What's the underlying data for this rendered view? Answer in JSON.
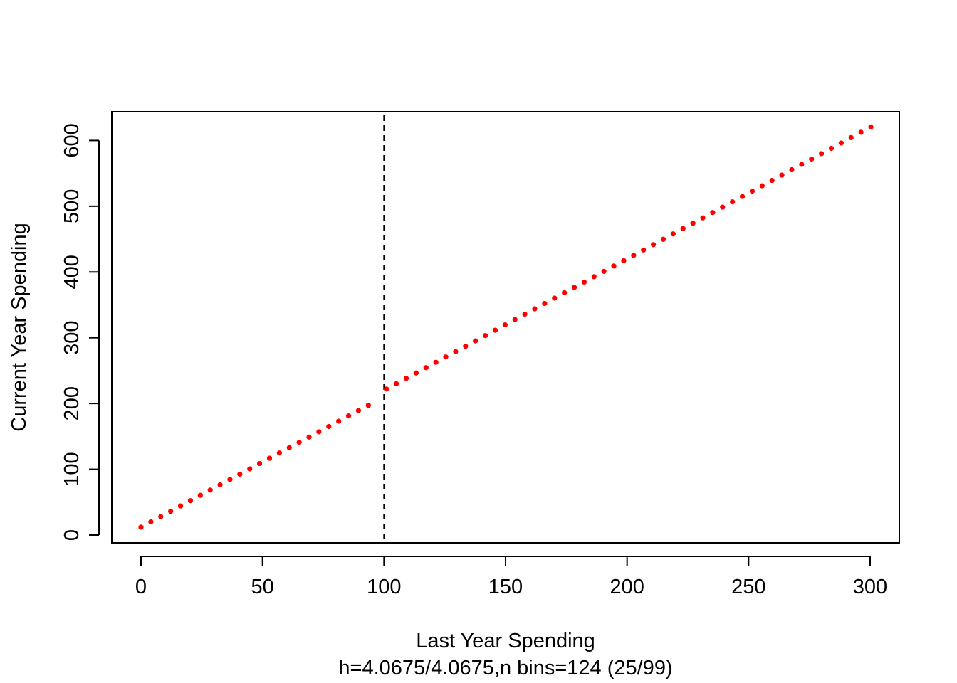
{
  "chart_data": {
    "type": "scatter",
    "title": "",
    "xlabel": "Last Year Spending",
    "xlabel_sub": "h=4.0675/4.0675,n bins=124 (25/99)",
    "ylabel": "Current Year Spending",
    "xlim": [
      -12,
      313
    ],
    "ylim": [
      -12,
      644
    ],
    "x_ticks": [
      0,
      50,
      100,
      150,
      200,
      250,
      300
    ],
    "y_ticks": [
      0,
      100,
      200,
      300,
      400,
      500,
      600
    ],
    "cutoff": 100,
    "cutoff_line_style": "dashed",
    "point_color": "#ff0000",
    "grid": false,
    "legend": "none",
    "segments": [
      {
        "x_start": 0,
        "x_end": 96.5,
        "step": 4.0675,
        "y_at_x0": 12.0,
        "slope": 1.98
      },
      {
        "x_start": 101,
        "x_end": 302,
        "step": 4.0675,
        "y_at_x0": 20.0,
        "slope": 2.0
      }
    ]
  }
}
